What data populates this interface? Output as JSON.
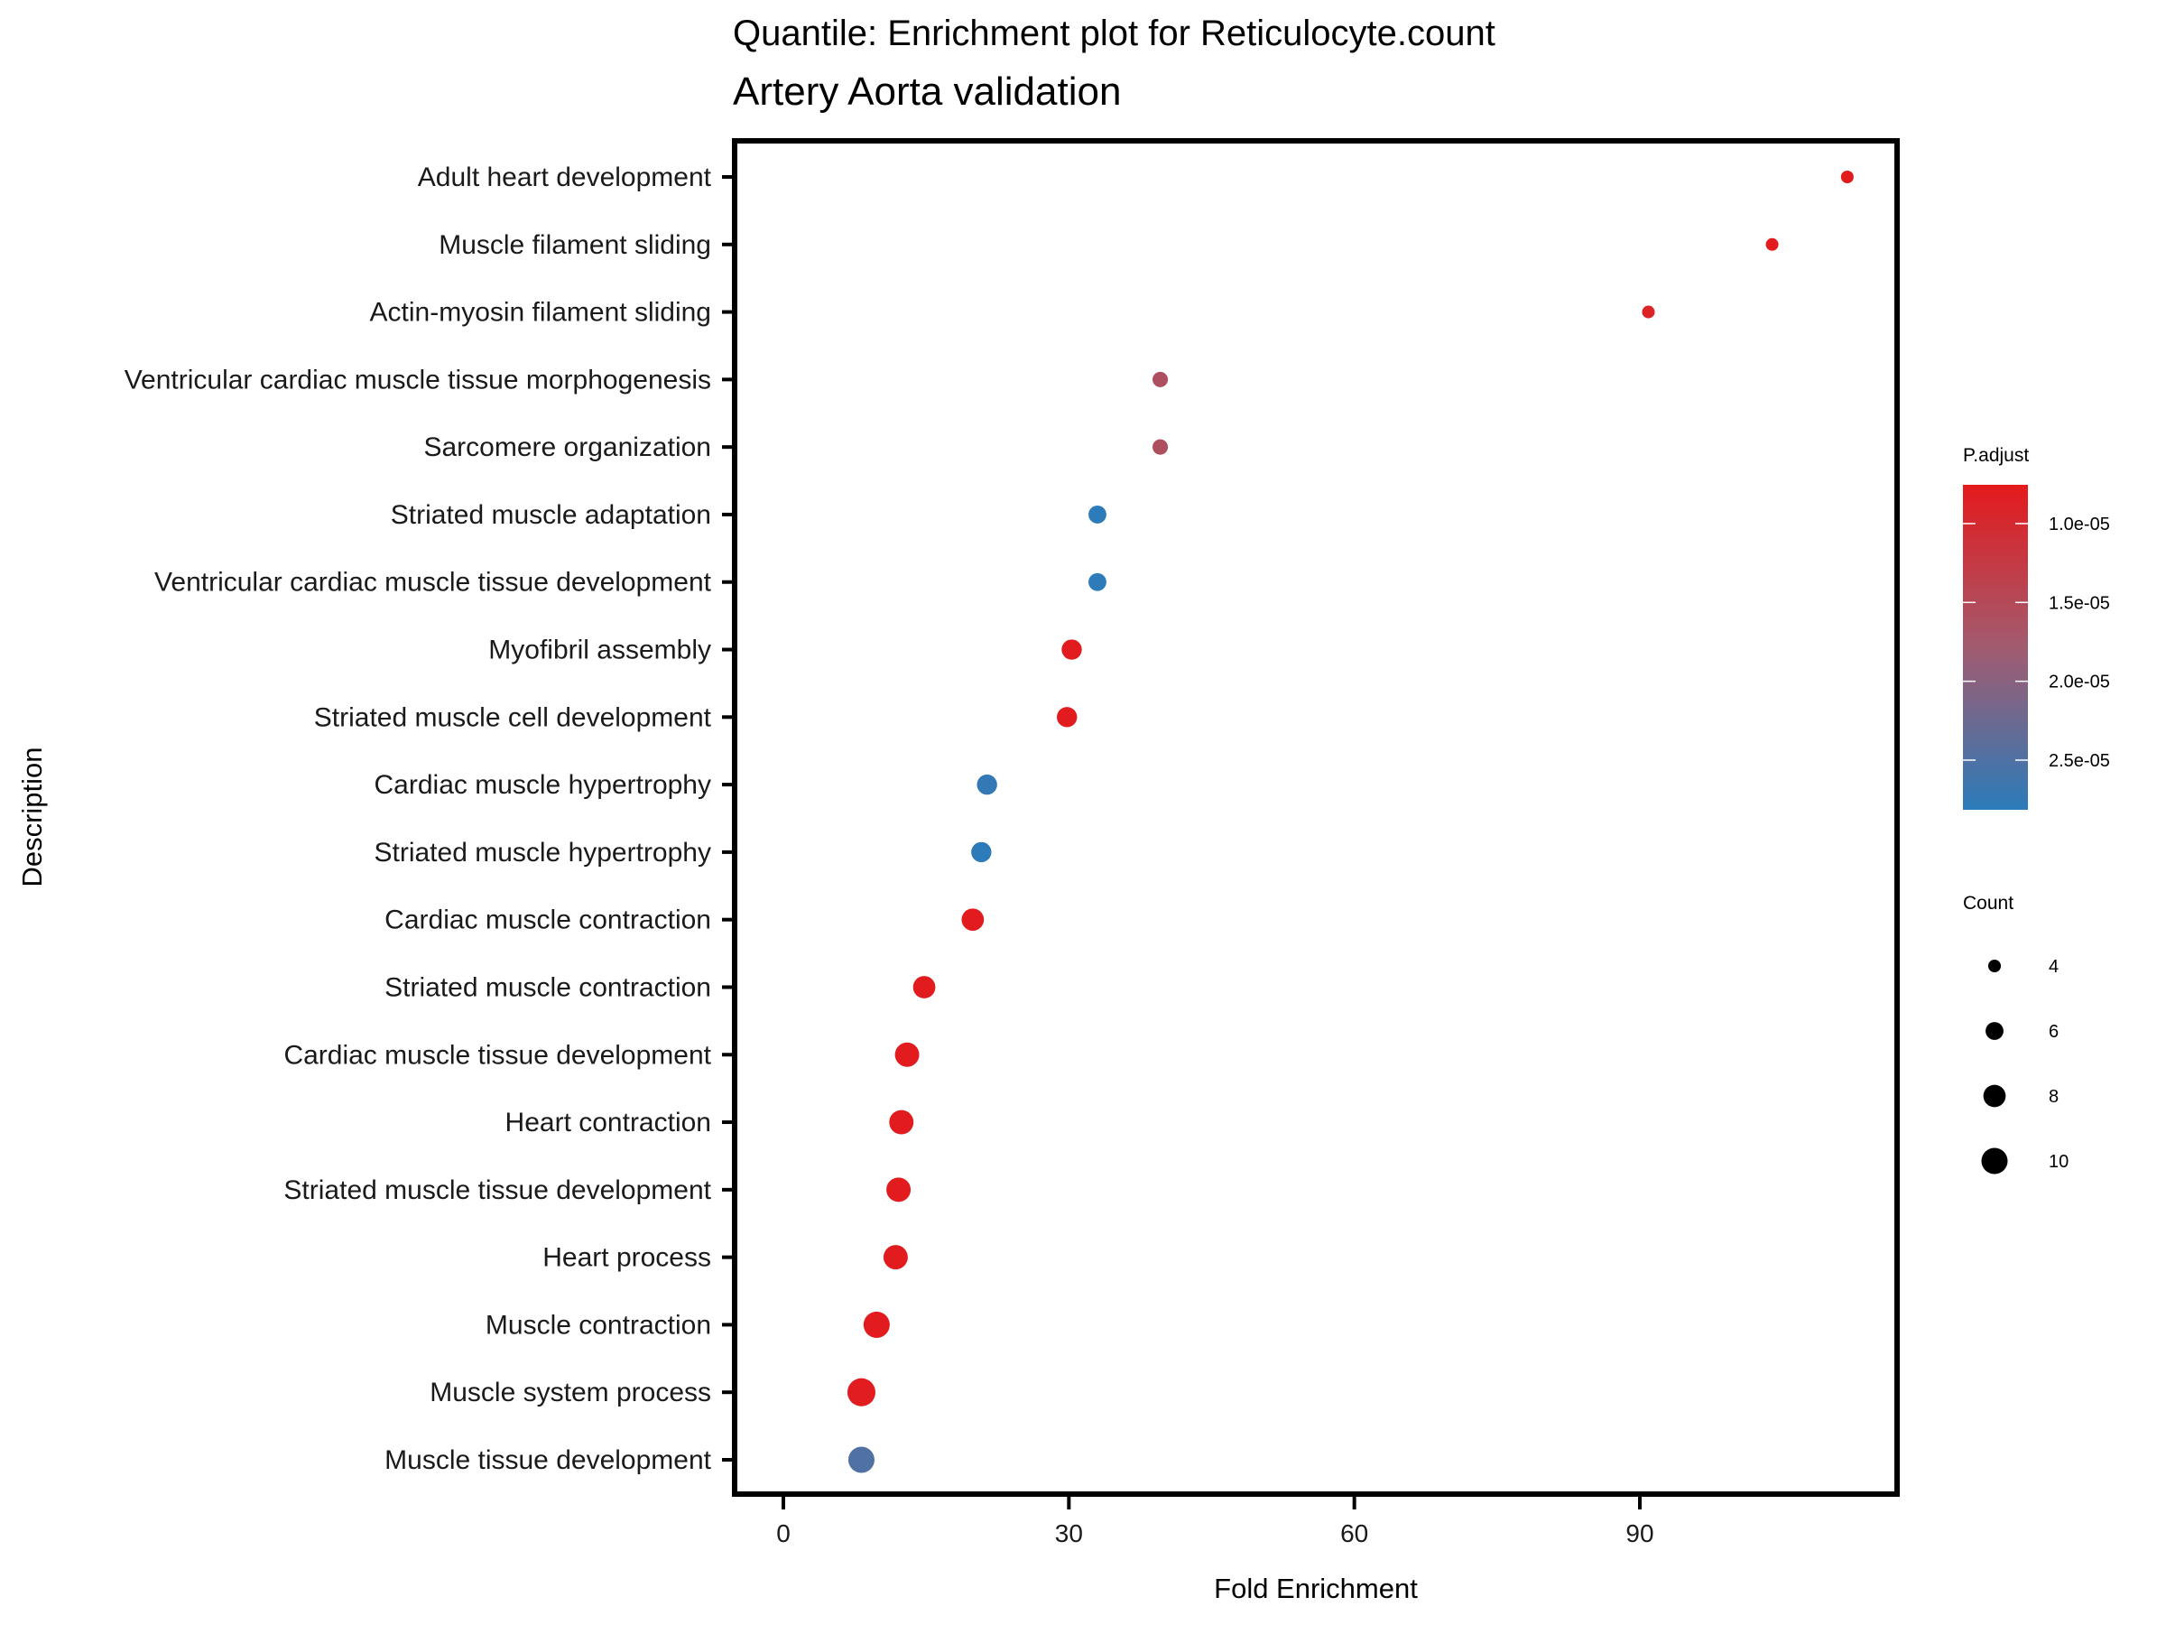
{
  "chart_data": {
    "type": "scatter",
    "title": "Quantile: Enrichment plot for Reticulocyte.count",
    "subtitle": "Artery Aorta validation",
    "xlabel": "Fold Enrichment",
    "ylabel": "Description",
    "xlim": [
      -5.5,
      117
    ],
    "xticks": [
      0,
      30,
      60,
      90
    ],
    "xtick_labels": [
      "0",
      "30",
      "60",
      "90"
    ],
    "grid": false,
    "categories": [
      "Adult heart development",
      "Muscle filament sliding",
      "Actin-myosin filament sliding",
      "Ventricular cardiac muscle tissue morphogenesis",
      "Sarcomere organization",
      "Striated muscle adaptation",
      "Ventricular cardiac muscle tissue development",
      "Myofibril assembly",
      "Striated muscle cell development",
      "Cardiac muscle hypertrophy",
      "Striated muscle hypertrophy",
      "Cardiac muscle contraction",
      "Striated muscle contraction",
      "Cardiac muscle tissue development",
      "Heart contraction",
      "Striated muscle tissue development",
      "Heart process",
      "Muscle contraction",
      "Muscle system process",
      "Muscle tissue development"
    ],
    "fold_enrichment": [
      111.8,
      103.9,
      90.9,
      39.6,
      39.6,
      33.0,
      33.0,
      30.3,
      29.8,
      21.4,
      20.8,
      19.9,
      14.8,
      13.0,
      12.4,
      12.1,
      11.8,
      9.8,
      8.2,
      8.2
    ],
    "count": [
      4,
      4,
      4,
      5,
      5,
      6,
      6,
      7,
      7,
      7,
      7,
      8,
      8,
      9,
      9,
      9,
      9,
      10,
      11,
      10
    ],
    "p_adjust": [
      7.8e-06,
      7.8e-06,
      9e-06,
      1.6e-05,
      1.6e-05,
      2.8e-05,
      2.8e-05,
      7.8e-06,
      7.8e-06,
      2.75e-05,
      2.8e-05,
      7.8e-06,
      7.8e-06,
      7.8e-06,
      7.8e-06,
      7.8e-06,
      7.8e-06,
      7.8e-06,
      8e-06,
      2.5e-05
    ],
    "color_legend": {
      "title": "P.adjust",
      "ticks": [
        1e-05,
        1.5e-05,
        2e-05,
        2.5e-05
      ],
      "tick_labels": [
        "1.0e-05",
        "1.5e-05",
        "2.0e-05",
        "2.5e-05"
      ],
      "range": [
        7.54e-06,
        2.815e-05
      ],
      "low_color": "#E41A1C",
      "high_color": "#2B7BBA",
      "placement": "right"
    },
    "size_legend": {
      "title": "Count",
      "values": [
        4,
        6,
        8,
        10
      ],
      "labels": [
        "4",
        "6",
        "8",
        "10"
      ],
      "placement": "right"
    }
  }
}
